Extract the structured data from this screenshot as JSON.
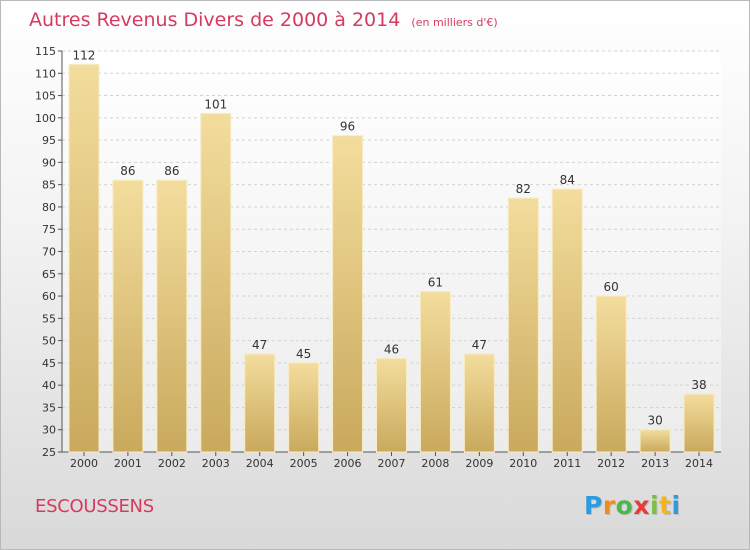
{
  "chart_data": {
    "type": "bar",
    "title": "Autres Revenus Divers de 2000 à 2014",
    "unit": "(en milliers d'€)",
    "categories": [
      "2000",
      "2001",
      "2002",
      "2003",
      "2004",
      "2005",
      "2006",
      "2007",
      "2008",
      "2009",
      "2010",
      "2011",
      "2012",
      "2013",
      "2014"
    ],
    "values": [
      112,
      86,
      86,
      101,
      47,
      45,
      96,
      46,
      61,
      47,
      82,
      84,
      60,
      30,
      38
    ],
    "ylim": [
      25,
      115
    ],
    "yticks": [
      25,
      30,
      35,
      40,
      45,
      50,
      55,
      60,
      65,
      70,
      75,
      80,
      85,
      90,
      95,
      100,
      105,
      110,
      115
    ],
    "grid": true,
    "bar_color": "#e8cd8a",
    "title_color": "#d63a5e"
  },
  "commune": "ESCOUSSENS",
  "brand": {
    "letters": [
      "P",
      "r",
      "o",
      "x",
      "i",
      "t",
      "i"
    ],
    "colors": [
      "#2d9be0",
      "#f28a1d",
      "#4cb84c",
      "#e63c3c",
      "#7ac143",
      "#f5b21b",
      "#2d9be0"
    ]
  }
}
